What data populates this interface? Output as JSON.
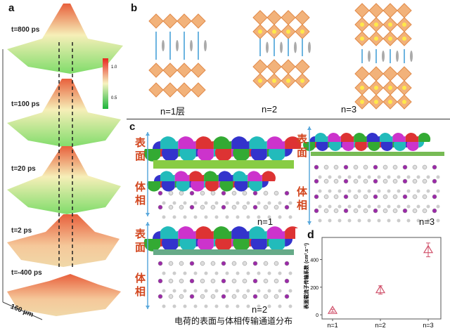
{
  "panel_a": {
    "label": "a",
    "times": [
      "t=800 ps",
      "t=100 ps",
      "t=20 ps",
      "t=2 ps",
      "t=-400 ps"
    ],
    "scale_label": "160 µm",
    "colorbar": {
      "ticks": [
        "1.0",
        "0.5"
      ],
      "colors": [
        "#e8261e",
        "#f6f3c0",
        "#1cb53a"
      ]
    }
  },
  "panel_b": {
    "label": "b",
    "structures": [
      "n=1层",
      "n=2",
      "n=3"
    ]
  },
  "panel_c": {
    "label": "c",
    "surface_label": "表面",
    "bulk_label": "体相",
    "structures": [
      "n=1",
      "n=2",
      "n=3"
    ],
    "caption": "电荷的表面与体相传输通道分布"
  },
  "chart_data": {
    "type": "scatter",
    "label": "d",
    "ylabel": "表面载流子传输系数 (cm².s⁻¹)",
    "categories": [
      "n=1",
      "n=2",
      "n=3"
    ],
    "values": [
      30,
      180,
      470
    ],
    "errors": [
      10,
      30,
      50
    ],
    "yticks": [
      "0",
      "200",
      "400"
    ],
    "ylim": [
      -30,
      560
    ],
    "marker": "triangle-open",
    "color": "#d0506a"
  }
}
